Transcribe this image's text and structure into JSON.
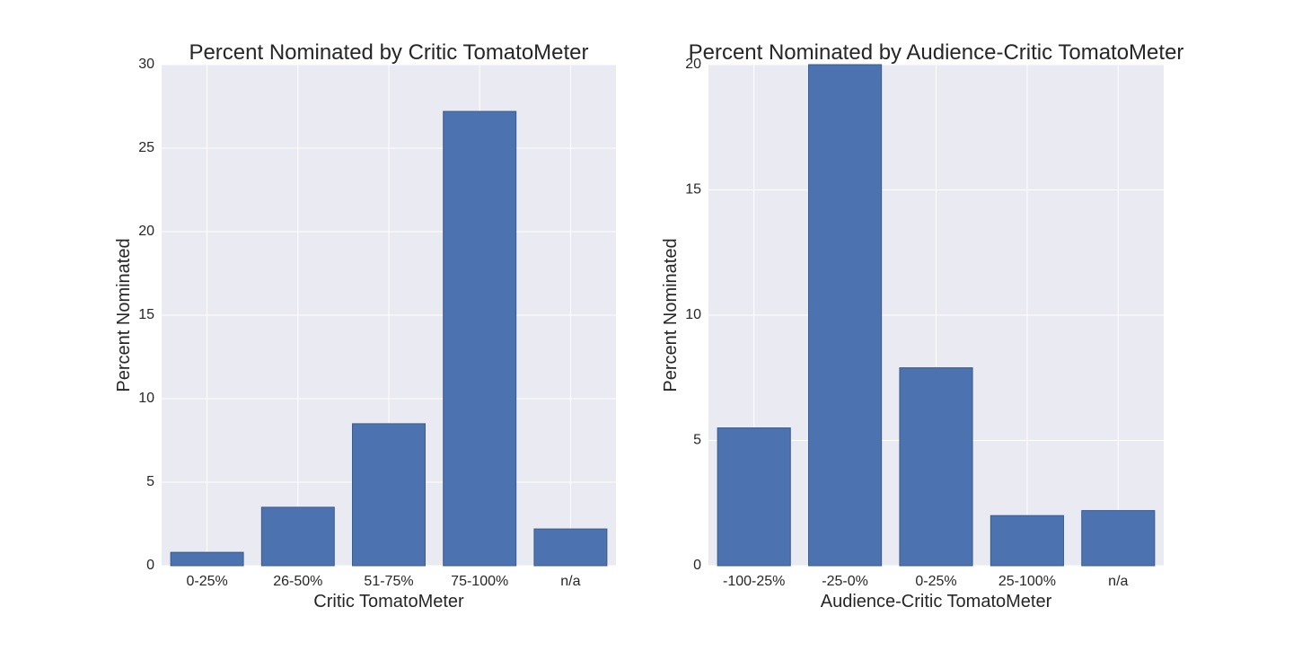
{
  "chart_data": [
    {
      "type": "bar",
      "title": "Percent Nominated by Critic TomatoMeter",
      "xlabel": "Critic TomatoMeter",
      "ylabel": "Percent Nominated",
      "categories": [
        "0-25%",
        "26-50%",
        "51-75%",
        "75-100%",
        "n/a"
      ],
      "values": [
        0.8,
        3.5,
        8.5,
        27.2,
        2.2
      ],
      "ylim": [
        0,
        30
      ],
      "yticks": [
        "0",
        "5",
        "10",
        "15",
        "20",
        "25",
        "30"
      ],
      "grid": true,
      "bar_color": "#4c72b0",
      "background_color": "#eaeaf2"
    },
    {
      "type": "bar",
      "title": "Percent Nominated by Audience-Critic TomatoMeter",
      "xlabel": "Audience-Critic TomatoMeter",
      "ylabel": "Percent Nominated",
      "categories": [
        "-100-25%",
        "-25-0%",
        "0-25%",
        "25-100%",
        "n/a"
      ],
      "values": [
        5.5,
        20.0,
        7.9,
        2.0,
        2.2
      ],
      "ylim": [
        0,
        20
      ],
      "yticks": [
        "0",
        "5",
        "10",
        "15",
        "20"
      ],
      "grid": true,
      "bar_color": "#4c72b0",
      "background_color": "#eaeaf2"
    }
  ]
}
